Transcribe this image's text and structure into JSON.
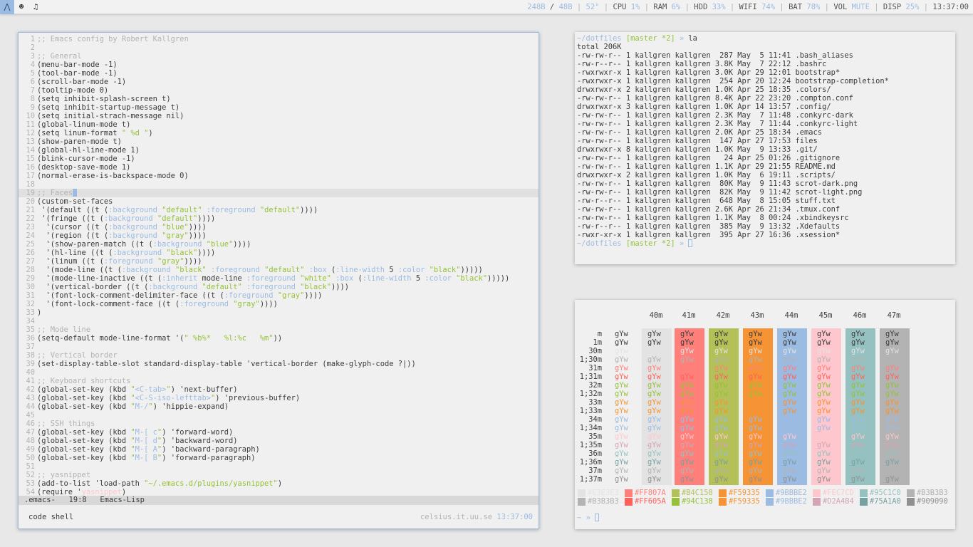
{
  "panel": {
    "icons": [
      "arch-logo-icon",
      "face-icon",
      "music-icon"
    ],
    "segments": [
      {
        "t": "248B",
        "c": "b"
      },
      {
        "t": " / ",
        "c": ""
      },
      {
        "t": "48B",
        "c": "b"
      },
      {
        "t": " | ",
        "c": "gr"
      },
      {
        "t": "52°",
        "c": "b"
      },
      {
        "t": " | ",
        "c": "gr"
      },
      {
        "t": "CPU ",
        "c": ""
      },
      {
        "t": "1%",
        "c": "b"
      },
      {
        "t": " | ",
        "c": "gr"
      },
      {
        "t": "RAM ",
        "c": ""
      },
      {
        "t": "6%",
        "c": "b"
      },
      {
        "t": " | ",
        "c": "gr"
      },
      {
        "t": "HDD ",
        "c": ""
      },
      {
        "t": "33%",
        "c": "b"
      },
      {
        "t": " | ",
        "c": "gr"
      },
      {
        "t": "WIFI ",
        "c": ""
      },
      {
        "t": "74%",
        "c": "b"
      },
      {
        "t": " | ",
        "c": "gr"
      },
      {
        "t": "BAT ",
        "c": ""
      },
      {
        "t": "78%",
        "c": "b"
      },
      {
        "t": " | ",
        "c": "gr"
      },
      {
        "t": "VOL ",
        "c": ""
      },
      {
        "t": "MUTE",
        "c": "b"
      },
      {
        "t": " | ",
        "c": "gr"
      },
      {
        "t": "DISP ",
        "c": ""
      },
      {
        "t": "25%",
        "c": "b"
      },
      {
        "t": " | ",
        "c": "gr"
      },
      {
        "t": "13:37:00",
        "c": ""
      }
    ]
  },
  "emacs": {
    "lines": [
      [
        [
          "c",
          ";; Emacs config by Robert Kallgren"
        ]
      ],
      [],
      [
        [
          "c",
          ";; General"
        ]
      ],
      [
        [
          "",
          "(menu-bar-mode -1)"
        ]
      ],
      [
        [
          "",
          "(tool-bar-mode -1)"
        ]
      ],
      [
        [
          "",
          "(scroll-bar-mode -1)"
        ]
      ],
      [
        [
          "",
          "(tooltip-mode 0)"
        ]
      ],
      [
        [
          "",
          "(setq inhibit-splash-screen t)"
        ]
      ],
      [
        [
          "",
          "(setq inhibit-startup-message t)"
        ]
      ],
      [
        [
          "",
          "(setq initial-strach-message nil)"
        ]
      ],
      [
        [
          "",
          "(global-linum-mode t)"
        ]
      ],
      [
        [
          "",
          "(setq linum-format "
        ],
        [
          "s",
          "\" %d \""
        ],
        [
          "",
          ")"
        ]
      ],
      [
        [
          "",
          "(show-paren-mode t)"
        ]
      ],
      [
        [
          "",
          "(global-hl-line-mode 1)"
        ]
      ],
      [
        [
          "",
          "(blink-cursor-mode -1)"
        ]
      ],
      [
        [
          "",
          "(desktop-save-mode 1)"
        ]
      ],
      [
        [
          "",
          "(normal-erase-is-backspace-mode 0)"
        ]
      ],
      [],
      [
        [
          "c",
          ";; Faces"
        ],
        [
          "cur",
          ""
        ]
      ],
      [
        [
          "",
          "(custom-set-faces"
        ]
      ],
      [
        [
          "",
          " '(default ((t ("
        ],
        [
          "k",
          ":background"
        ],
        [
          "",
          " "
        ],
        [
          "s",
          "\"default\""
        ],
        [
          "",
          " "
        ],
        [
          "k",
          ":foreground"
        ],
        [
          "",
          " "
        ],
        [
          "s",
          "\"default\""
        ],
        [
          "",
          "))))"
        ]
      ],
      [
        [
          "",
          " '(fringe ((t ("
        ],
        [
          "k",
          ":background"
        ],
        [
          "",
          " "
        ],
        [
          "s",
          "\"default\""
        ],
        [
          "",
          "))))"
        ]
      ],
      [
        [
          "",
          "  '(cursor ((t ("
        ],
        [
          "k",
          ":background"
        ],
        [
          "",
          " "
        ],
        [
          "s",
          "\"blue\""
        ],
        [
          "",
          "))))"
        ]
      ],
      [
        [
          "",
          "  '(region ((t ("
        ],
        [
          "k",
          ":background"
        ],
        [
          "",
          " "
        ],
        [
          "s",
          "\"gray\""
        ],
        [
          "",
          "))))"
        ]
      ],
      [
        [
          "",
          "  '(show-paren-match ((t ("
        ],
        [
          "k",
          ":background"
        ],
        [
          "",
          " "
        ],
        [
          "s",
          "\"blue\""
        ],
        [
          "",
          "))))"
        ]
      ],
      [
        [
          "",
          "  '(hl-line ((t ("
        ],
        [
          "k",
          ":background"
        ],
        [
          "",
          " "
        ],
        [
          "s",
          "\"black\""
        ],
        [
          "",
          "))))"
        ]
      ],
      [
        [
          "",
          "  '(linum ((t ("
        ],
        [
          "k",
          ":foreground"
        ],
        [
          "",
          " "
        ],
        [
          "s",
          "\"gray\""
        ],
        [
          "",
          "))))"
        ]
      ],
      [
        [
          "",
          "  '(mode-line ((t ("
        ],
        [
          "k",
          ":background"
        ],
        [
          "",
          " "
        ],
        [
          "s",
          "\"black\""
        ],
        [
          "",
          " "
        ],
        [
          "k",
          ":foreground"
        ],
        [
          "",
          " "
        ],
        [
          "s",
          "\"default\""
        ],
        [
          "",
          " "
        ],
        [
          "k",
          ":box"
        ],
        [
          "",
          " ("
        ],
        [
          "k",
          ":line-width"
        ],
        [
          "",
          " 5 "
        ],
        [
          "k",
          ":color"
        ],
        [
          "",
          " "
        ],
        [
          "s",
          "\"black\""
        ],
        [
          "",
          ")))))"
        ]
      ],
      [
        [
          "",
          "  '(mode-line-inactive ((t ("
        ],
        [
          "k",
          ":inherit"
        ],
        [
          "",
          " mode-line "
        ],
        [
          "k",
          ":foreground"
        ],
        [
          "",
          " "
        ],
        [
          "s",
          "\"white\""
        ],
        [
          "",
          " "
        ],
        [
          "k",
          ":box"
        ],
        [
          "",
          " ("
        ],
        [
          "k",
          ":line-width"
        ],
        [
          "",
          " 5 "
        ],
        [
          "k",
          ":color"
        ],
        [
          "",
          " "
        ],
        [
          "s",
          "\"black\""
        ],
        [
          "",
          ")))))"
        ]
      ],
      [
        [
          "",
          "  '(vertical-border ((t ("
        ],
        [
          "k",
          ":background"
        ],
        [
          "",
          " "
        ],
        [
          "s",
          "\"default\""
        ],
        [
          "",
          " "
        ],
        [
          "k",
          ":foreground"
        ],
        [
          "",
          " "
        ],
        [
          "s",
          "\"black\""
        ],
        [
          "",
          "))))"
        ]
      ],
      [
        [
          "",
          "  '(font-lock-comment-delimiter-face ((t ("
        ],
        [
          "k",
          ":foreground"
        ],
        [
          "",
          " "
        ],
        [
          "s",
          "\"gray\""
        ],
        [
          "",
          "))))"
        ]
      ],
      [
        [
          "",
          "  '(font-lock-comment-face ((t ("
        ],
        [
          "k",
          ":foreground"
        ],
        [
          "",
          " "
        ],
        [
          "s",
          "\"gray\""
        ],
        [
          "",
          "))))"
        ]
      ],
      [
        [
          "",
          ")"
        ]
      ],
      [],
      [
        [
          "c",
          ";; Mode line"
        ]
      ],
      [
        [
          "",
          "(setq-default mode-line-format '("
        ],
        [
          "s",
          "\" %b%*   %l:%c   %m\""
        ],
        [
          "",
          "))"
        ]
      ],
      [],
      [
        [
          "c",
          ";; Vertical border"
        ]
      ],
      [
        [
          "",
          "(set-display-table-slot standard-display-table 'vertical-border (make-glyph-code ?|))"
        ]
      ],
      [],
      [
        [
          "c",
          ";; Keyboard shortcuts"
        ]
      ],
      [
        [
          "",
          "(global-set-key (kbd "
        ],
        [
          "s",
          "\""
        ],
        [
          "k",
          "<C-tab>"
        ],
        [
          "s",
          "\""
        ],
        [
          "",
          ") 'next-buffer)"
        ]
      ],
      [
        [
          "",
          "(global-set-key (kbd "
        ],
        [
          "s",
          "\""
        ],
        [
          "k",
          "<C-S-iso-lefttab>"
        ],
        [
          "s",
          "\""
        ],
        [
          "",
          ") 'previous-buffer)"
        ]
      ],
      [
        [
          "",
          "(global-set-key (kbd "
        ],
        [
          "s",
          "\""
        ],
        [
          "k",
          "M-/"
        ],
        [
          "s",
          "\""
        ],
        [
          "",
          ") 'hippie-expand)"
        ]
      ],
      [],
      [
        [
          "c",
          ";; SSH things"
        ]
      ],
      [
        [
          "",
          "(global-set-key (kbd "
        ],
        [
          "s",
          "\""
        ],
        [
          "k",
          "M-[ c"
        ],
        [
          "s",
          "\""
        ],
        [
          "",
          ") 'forward-word)"
        ]
      ],
      [
        [
          "",
          "(global-set-key (kbd "
        ],
        [
          "s",
          "\""
        ],
        [
          "k",
          "M-[ d"
        ],
        [
          "s",
          "\""
        ],
        [
          "",
          ") 'backward-word)"
        ]
      ],
      [
        [
          "",
          "(global-set-key (kbd "
        ],
        [
          "s",
          "\""
        ],
        [
          "k",
          "M-[ A"
        ],
        [
          "s",
          "\""
        ],
        [
          "",
          ") 'backward-paragraph)"
        ]
      ],
      [
        [
          "",
          "(global-set-key (kbd "
        ],
        [
          "s",
          "\""
        ],
        [
          "k",
          "M-[ B"
        ],
        [
          "s",
          "\""
        ],
        [
          "",
          ") 'forward-paragraph)"
        ]
      ],
      [],
      [
        [
          "c",
          ";; yasnippet"
        ]
      ],
      [
        [
          "",
          "(add-to-list 'load-path "
        ],
        [
          "s",
          "\"~/.emacs.d/plugins/yasnippet\""
        ],
        [
          "",
          ")"
        ]
      ],
      [
        [
          "",
          "(require '"
        ],
        [
          "p",
          "yasnippet"
        ],
        [
          "",
          ")"
        ]
      ]
    ],
    "cursor_line": 19,
    "modeline": ".emacs-   19:8   Emacs-Lisp",
    "tabs": "code shell",
    "host": "celsius.it.uu.se",
    "time": "13:37:00"
  },
  "term": {
    "prompt_dir": "~/dotfiles",
    "prompt_branch": "[master *2]",
    "prompt_arrow": "»",
    "command": "la",
    "total": "total 206K",
    "files": [
      "-rw-rw-r-- 1 kallgren kallgren  287 May  5 11:41 .bash_aliases",
      "-rw-r--r-- 1 kallgren kallgren 3.8K May  7 22:12 .bashrc",
      "-rwxrwxr-x 1 kallgren kallgren 3.0K Apr 29 12:01 bootstrap*",
      "-rwxrwxr-x 1 kallgren kallgren  254 Apr 20 12:24 bootstrap-completion*",
      "drwxrwxr-x 2 kallgren kallgren 1.0K Apr 25 18:35 .colors/",
      "-rw-rw-r-- 1 kallgren kallgren 8.4K Apr 22 23:20 .compton.conf",
      "drwxrwxr-x 3 kallgren kallgren 1.0K Apr 14 13:57 .config/",
      "-rw-rw-r-- 1 kallgren kallgren 2.3K May  7 11:48 .conkyrc-dark",
      "-rw-rw-r-- 1 kallgren kallgren 2.3K May  7 11:44 .conkyrc-light",
      "-rw-rw-r-- 1 kallgren kallgren 2.0K Apr 25 18:34 .emacs",
      "-rw-rw-r-- 1 kallgren kallgren  147 Apr 27 17:53 files",
      "drwxrwxr-x 8 kallgren kallgren 1.0K May  9 13:33 .git/",
      "-rw-rw-r-- 1 kallgren kallgren   24 Apr 25 01:26 .gitignore",
      "-rw-rw-r-- 1 kallgren kallgren 1.1K Apr 29 21:55 README.md",
      "drwxrwxr-x 2 kallgren kallgren 1.0K May  6 19:11 .scripts/",
      "-rw-rw-r-- 1 kallgren kallgren  80K May  9 11:43 scrot-dark.png",
      "-rw-rw-r-- 1 kallgren kallgren  82K May  9 11:42 scrot-light.png",
      "-rw-r--r-- 1 kallgren kallgren  648 May  8 15:05 stuff.txt",
      "-rw-rw-r-- 1 kallgren kallgren 2.6K Apr 26 21:34 .tmux.conf",
      "-rw-rw-r-- 1 kallgren kallgren 1.1K May  8 00:24 .xbindkeysrc",
      "-rw-r--r-- 1 kallgren kallgren  385 May  9 13:32 .Xdefaults",
      "-rwxr-xr-x 1 kallgren kallgren  395 Apr 27 16:36 .xsession*"
    ]
  },
  "colortest": {
    "text": "gYw",
    "headers": [
      "40m",
      "41m",
      "42m",
      "43m",
      "44m",
      "45m",
      "46m",
      "47m"
    ],
    "rows": [
      "m",
      "1m",
      "30m",
      "1;30m",
      "31m",
      "1;31m",
      "32m",
      "1;32m",
      "33m",
      "1;33m",
      "34m",
      "1;34m",
      "35m",
      "1;35m",
      "36m",
      "1;36m",
      "37m",
      "1;37m"
    ],
    "bg_colors": [
      "#e3e3e3",
      "#ff807a",
      "#b4c158",
      "#f59335",
      "#9bbbe2",
      "#fec7cd",
      "#95c1c0",
      "#b3b3b3"
    ],
    "fg_colors": [
      "#3a3a3a",
      "#3a3a3a",
      "#e3e3e3",
      "#b3b3b3",
      "#ff807a",
      "#ff605a",
      "#94c138",
      "#94c138",
      "#f59335",
      "#f59335",
      "#9bbbe2",
      "#9bbbe2",
      "#fec7cd",
      "#d2a4b4",
      "#95c1c0",
      "#75a1a0",
      "#b3b3b3",
      "#909090"
    ],
    "swatches_top": [
      [
        "#E3E3E3",
        "#e3e3e3"
      ],
      [
        "#FF807A",
        "#ff807a"
      ],
      [
        "#B4C158",
        "#b4c158"
      ],
      [
        "#F59335",
        "#f59335"
      ],
      [
        "#9BBBE2",
        "#9bbbe2"
      ],
      [
        "#FEC7CD",
        "#fec7cd"
      ],
      [
        "#95C1C0",
        "#95c1c0"
      ],
      [
        "#B3B3B3",
        "#b3b3b3"
      ]
    ],
    "swatches_bottom": [
      [
        "#B3B3B3",
        "#b3b3b3"
      ],
      [
        "#FF605A",
        "#ff605a"
      ],
      [
        "#94C138",
        "#94c138"
      ],
      [
        "#F59335",
        "#f59335"
      ],
      [
        "#9BBBE2",
        "#9bbbe2"
      ],
      [
        "#D2A4B4",
        "#d2a4b4"
      ],
      [
        "#75A1A0",
        "#75a1a0"
      ],
      [
        "#909090",
        "#909090"
      ]
    ],
    "prompt": "~ »"
  }
}
